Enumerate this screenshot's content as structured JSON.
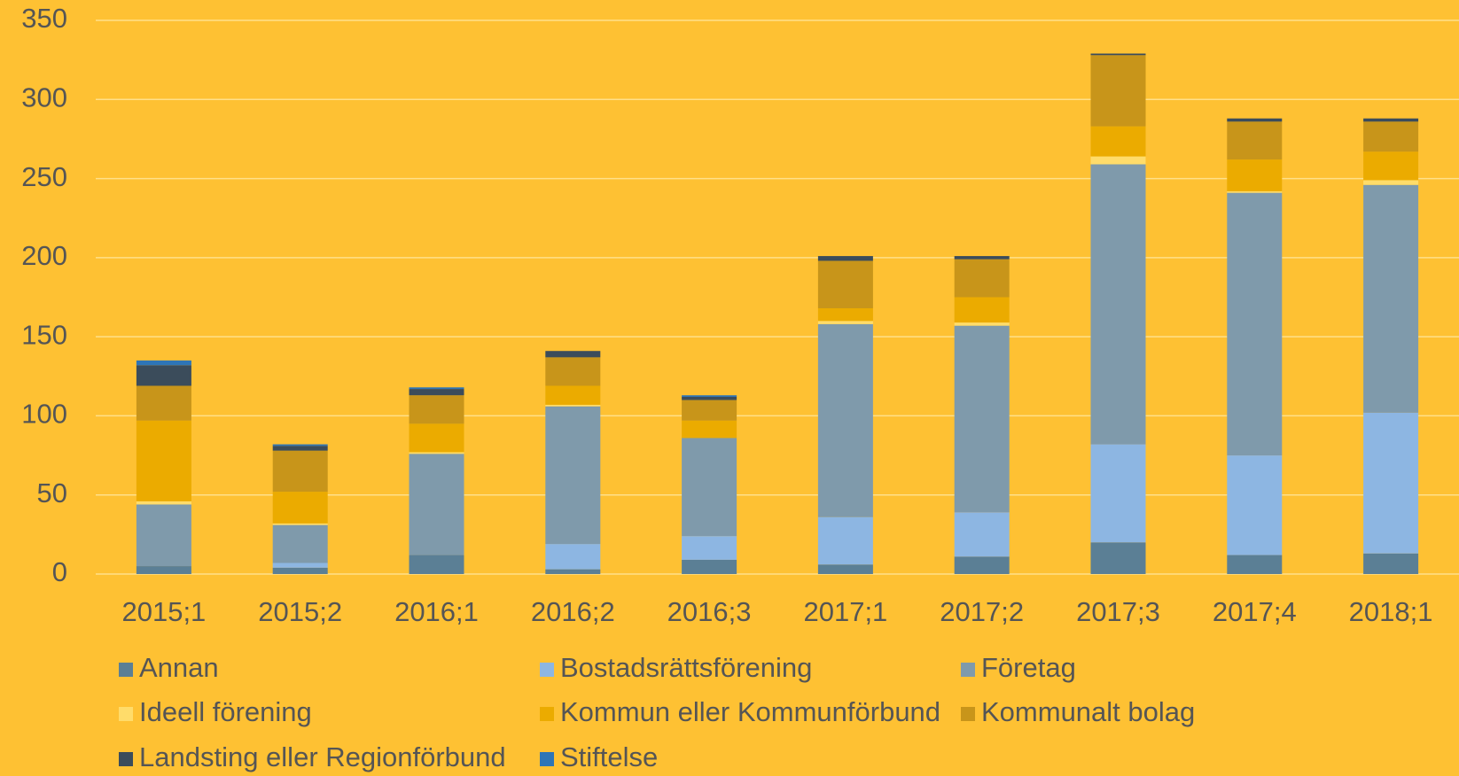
{
  "chart_data": {
    "type": "stacked_bar",
    "categories": [
      "2015;1",
      "2015;2",
      "2016;1",
      "2016;2",
      "2016;3",
      "2017;1",
      "2017;2",
      "2017;3",
      "2017;4",
      "2018;1"
    ],
    "series": [
      {
        "name": "Annan",
        "color": "#5b7f95",
        "values": [
          5,
          4,
          12,
          3,
          9,
          6,
          11,
          20,
          12,
          13
        ]
      },
      {
        "name": "Bostadsrättsförening",
        "color": "#8db6e2",
        "values": [
          0,
          3,
          0,
          16,
          15,
          30,
          28,
          62,
          63,
          89
        ]
      },
      {
        "name": "Företag",
        "color": "#7f9aab",
        "values": [
          39,
          24,
          64,
          87,
          62,
          122,
          118,
          177,
          166,
          144
        ]
      },
      {
        "name": "Ideell förening",
        "color": "#ffdc6a",
        "values": [
          2,
          1,
          1,
          1,
          0,
          2,
          2,
          5,
          1,
          3
        ]
      },
      {
        "name": "Kommun eller Kommunförbund",
        "color": "#ebab00",
        "values": [
          51,
          20,
          18,
          12,
          11,
          8,
          16,
          19,
          20,
          18
        ]
      },
      {
        "name": "Kommunalt bolag",
        "color": "#c8951a",
        "values": [
          22,
          26,
          18,
          18,
          13,
          30,
          24,
          45,
          24,
          19
        ]
      },
      {
        "name": "Landsting eller Regionförbund",
        "color": "#3b4c5b",
        "values": [
          13,
          3,
          4,
          4,
          2,
          3,
          2,
          1,
          2,
          2
        ]
      },
      {
        "name": "Stiftelse",
        "color": "#2e75b6",
        "values": [
          3,
          1,
          1,
          0,
          1,
          0,
          0,
          0,
          0,
          0
        ]
      }
    ],
    "ylim": [
      0,
      350
    ],
    "yticks": [
      0,
      50,
      100,
      150,
      200,
      250,
      300,
      350
    ],
    "grid": true
  }
}
